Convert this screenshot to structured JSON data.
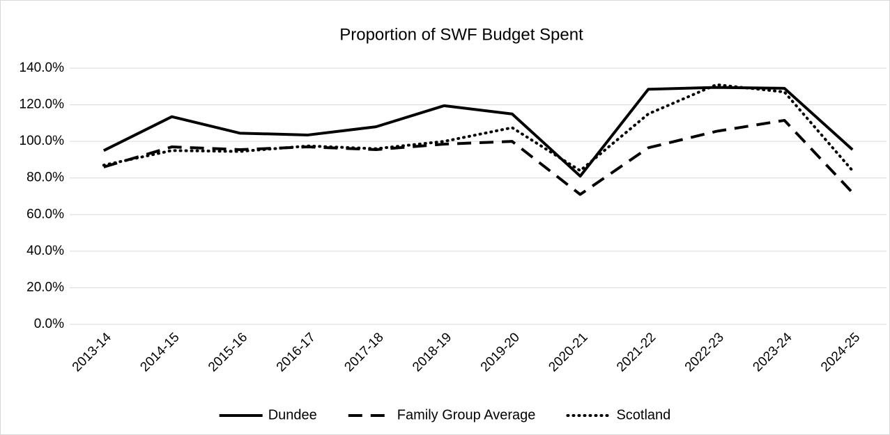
{
  "chart_data": {
    "type": "line",
    "title": "Proportion of SWF Budget Spent",
    "categories": [
      "2013-14",
      "2014-15",
      "2015-16",
      "2016-17",
      "2017-18",
      "2018-19",
      "2019-20",
      "2020-21",
      "2021-22",
      "2022-23",
      "2023-24",
      "2024-25"
    ],
    "series": [
      {
        "name": "Dundee",
        "color": "#000000",
        "dash": "solid",
        "values": [
          95,
          113.5,
          104.5,
          103.5,
          108,
          119.5,
          115,
          81,
          128.5,
          129.5,
          129,
          95.5
        ]
      },
      {
        "name": "Family Group Average",
        "color": "#000000",
        "dash": "dashed",
        "values": [
          86,
          97,
          95.5,
          97,
          95.5,
          98.5,
          100,
          71,
          96.5,
          105.5,
          111.5,
          72
        ]
      },
      {
        "name": "Scotland",
        "color": "#000000",
        "dash": "dotted",
        "values": [
          87,
          95,
          94.5,
          97.5,
          96,
          100,
          107.5,
          84,
          115,
          131,
          127,
          84
        ]
      }
    ],
    "ylim": [
      0,
      140
    ],
    "yticks": [
      {
        "value": 0,
        "label": "0.0%"
      },
      {
        "value": 20,
        "label": "20.0%"
      },
      {
        "value": 40,
        "label": "40.0%"
      },
      {
        "value": 60,
        "label": "60.0%"
      },
      {
        "value": 80,
        "label": "80.0%"
      },
      {
        "value": 100,
        "label": "100.0%"
      },
      {
        "value": 120,
        "label": "120.0%"
      },
      {
        "value": 140,
        "label": "140.0%"
      }
    ],
    "grid": true,
    "legend": "bottom"
  }
}
